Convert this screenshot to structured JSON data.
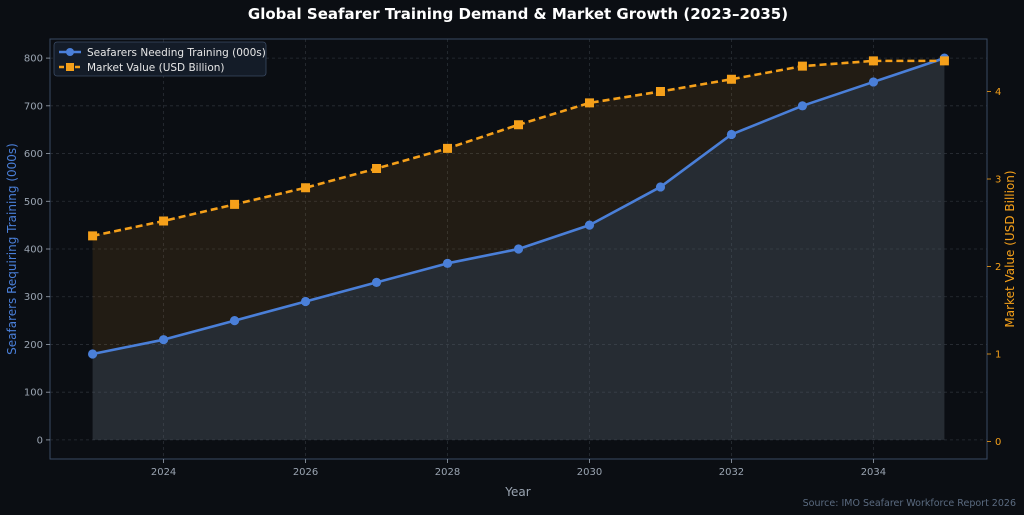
{
  "chart_data": {
    "type": "line",
    "title": "Global Seafarer Training Demand & Market Growth (2023–2035)",
    "xlabel": "Year",
    "ylabel_left": "Seafarers Requiring Training (000s)",
    "ylabel_right": "Market Value (USD Billion)",
    "source": "Source: IMO Seafarer Workforce Report 2026",
    "x": [
      2023,
      2024,
      2025,
      2026,
      2027,
      2028,
      2029,
      2030,
      2031,
      2032,
      2033,
      2034,
      2035
    ],
    "x_ticks": [
      2024,
      2026,
      2028,
      2030,
      2032,
      2034
    ],
    "xlim": [
      2022.4,
      2035.6
    ],
    "y_left_ticks": [
      0,
      100,
      200,
      300,
      400,
      500,
      600,
      700,
      800
    ],
    "ylim_left": [
      -40,
      840
    ],
    "y_right_ticks": [
      0,
      1,
      2,
      3,
      4
    ],
    "ylim_right": [
      -0.2,
      4.6
    ],
    "grid": true,
    "legend_position": "top-left",
    "series": [
      {
        "name": "Seafarers Needing Training (000s)",
        "axis": "left",
        "color": "#4a7fd8",
        "style": "solid",
        "marker": "circle",
        "values": [
          180,
          210,
          250,
          290,
          330,
          370,
          400,
          450,
          530,
          640,
          700,
          750,
          800
        ]
      },
      {
        "name": "Market Value (USD Billion)",
        "axis": "right",
        "color": "#f5a01a",
        "style": "dashed",
        "marker": "square",
        "values": [
          2.35,
          2.52,
          2.71,
          2.9,
          3.12,
          3.35,
          3.62,
          3.87,
          4.0,
          4.14,
          4.29,
          4.35,
          4.35
        ]
      }
    ]
  },
  "colors": {
    "background": "#0b0e13",
    "plot_background": "#0b0e13",
    "left_axis": "#4a7fd8",
    "right_axis": "#f5a01a",
    "tick_text": "#9aa4b1",
    "grid": "#2a2f36",
    "spine": "#3a4a63"
  }
}
